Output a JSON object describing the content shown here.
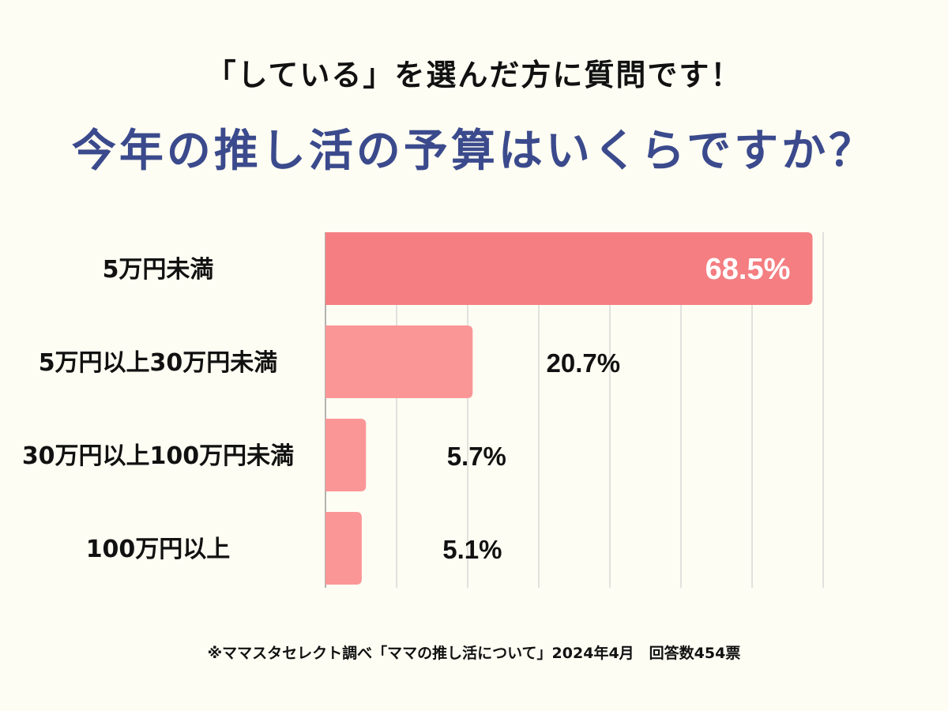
{
  "header": {
    "subtitle": "「している」を選んだ方に質問です！",
    "title": "今年の推し活の予算はいくらですか？"
  },
  "footnote": "※ママスタセレクト調べ「ママの推し活について」2024年4月　回答数454票",
  "colors": {
    "background": "#fdfdf3",
    "title": "#3b4a8c",
    "bar_highlight": "#f47e81",
    "bar": "#fb9697",
    "grid": "#d8d8d8",
    "axis": "#999999"
  },
  "chart_data": {
    "type": "bar",
    "orientation": "horizontal",
    "title": "今年の推し活の予算はいくらですか？",
    "categories": [
      "5万円未満",
      "5万円以上30万円未満",
      "30万円以上100万円未満",
      "100万円以上"
    ],
    "values": [
      68.5,
      20.7,
      5.7,
      5.1
    ],
    "value_labels": [
      "68.5%",
      "20.7%",
      "5.7%",
      "5.1%"
    ],
    "xlim": [
      0,
      70
    ],
    "grid_interval": 10,
    "xlabel": "",
    "ylabel": ""
  }
}
